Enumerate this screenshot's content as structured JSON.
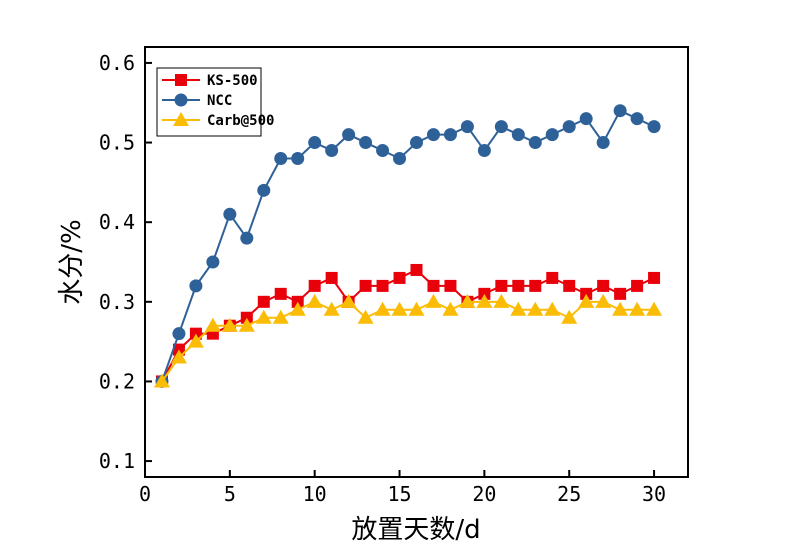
{
  "chart_data": {
    "type": "line",
    "title": "",
    "xlabel": "放置天数/d",
    "ylabel": "水分/%",
    "xlim": [
      0,
      32
    ],
    "ylim": [
      0.08,
      0.62
    ],
    "xticks": [
      0,
      5,
      10,
      15,
      20,
      25,
      30
    ],
    "yticks": [
      0.1,
      0.2,
      0.3,
      0.4,
      0.5,
      0.6
    ],
    "xtick_labels": [
      "0",
      "5",
      "10",
      "15",
      "20",
      "25",
      "30"
    ],
    "ytick_labels": [
      "0.1",
      "0.2",
      "0.3",
      "0.4",
      "0.5",
      "0.6"
    ],
    "grid": false,
    "legend_position": "top-left",
    "x": [
      1,
      2,
      3,
      4,
      5,
      6,
      7,
      8,
      9,
      10,
      11,
      12,
      13,
      14,
      15,
      16,
      17,
      18,
      19,
      20,
      21,
      22,
      23,
      24,
      25,
      26,
      27,
      28,
      29,
      30
    ],
    "series": [
      {
        "name": "KS-500",
        "color": "#e8000b",
        "marker": "square",
        "values": [
          0.2,
          0.24,
          0.26,
          0.26,
          0.27,
          0.28,
          0.3,
          0.31,
          0.3,
          0.32,
          0.33,
          0.3,
          0.32,
          0.32,
          0.33,
          0.34,
          0.32,
          0.32,
          0.3,
          0.31,
          0.32,
          0.32,
          0.32,
          0.33,
          0.32,
          0.31,
          0.32,
          0.31,
          0.32,
          0.33
        ]
      },
      {
        "name": "NCC",
        "color": "#2f6199",
        "marker": "circle",
        "values": [
          0.2,
          0.26,
          0.32,
          0.35,
          0.41,
          0.38,
          0.44,
          0.48,
          0.48,
          0.5,
          0.49,
          0.51,
          0.5,
          0.49,
          0.48,
          0.5,
          0.51,
          0.51,
          0.52,
          0.49,
          0.52,
          0.51,
          0.5,
          0.51,
          0.52,
          0.53,
          0.5,
          0.54,
          0.53,
          0.52
        ]
      },
      {
        "name": "Carb@500",
        "color": "#fbbc05",
        "marker": "triangle",
        "values": [
          0.2,
          0.23,
          0.25,
          0.27,
          0.27,
          0.27,
          0.28,
          0.28,
          0.29,
          0.3,
          0.29,
          0.3,
          0.28,
          0.29,
          0.29,
          0.29,
          0.3,
          0.29,
          0.3,
          0.3,
          0.3,
          0.29,
          0.29,
          0.29,
          0.28,
          0.3,
          0.3,
          0.29,
          0.29,
          0.29
        ]
      }
    ]
  }
}
